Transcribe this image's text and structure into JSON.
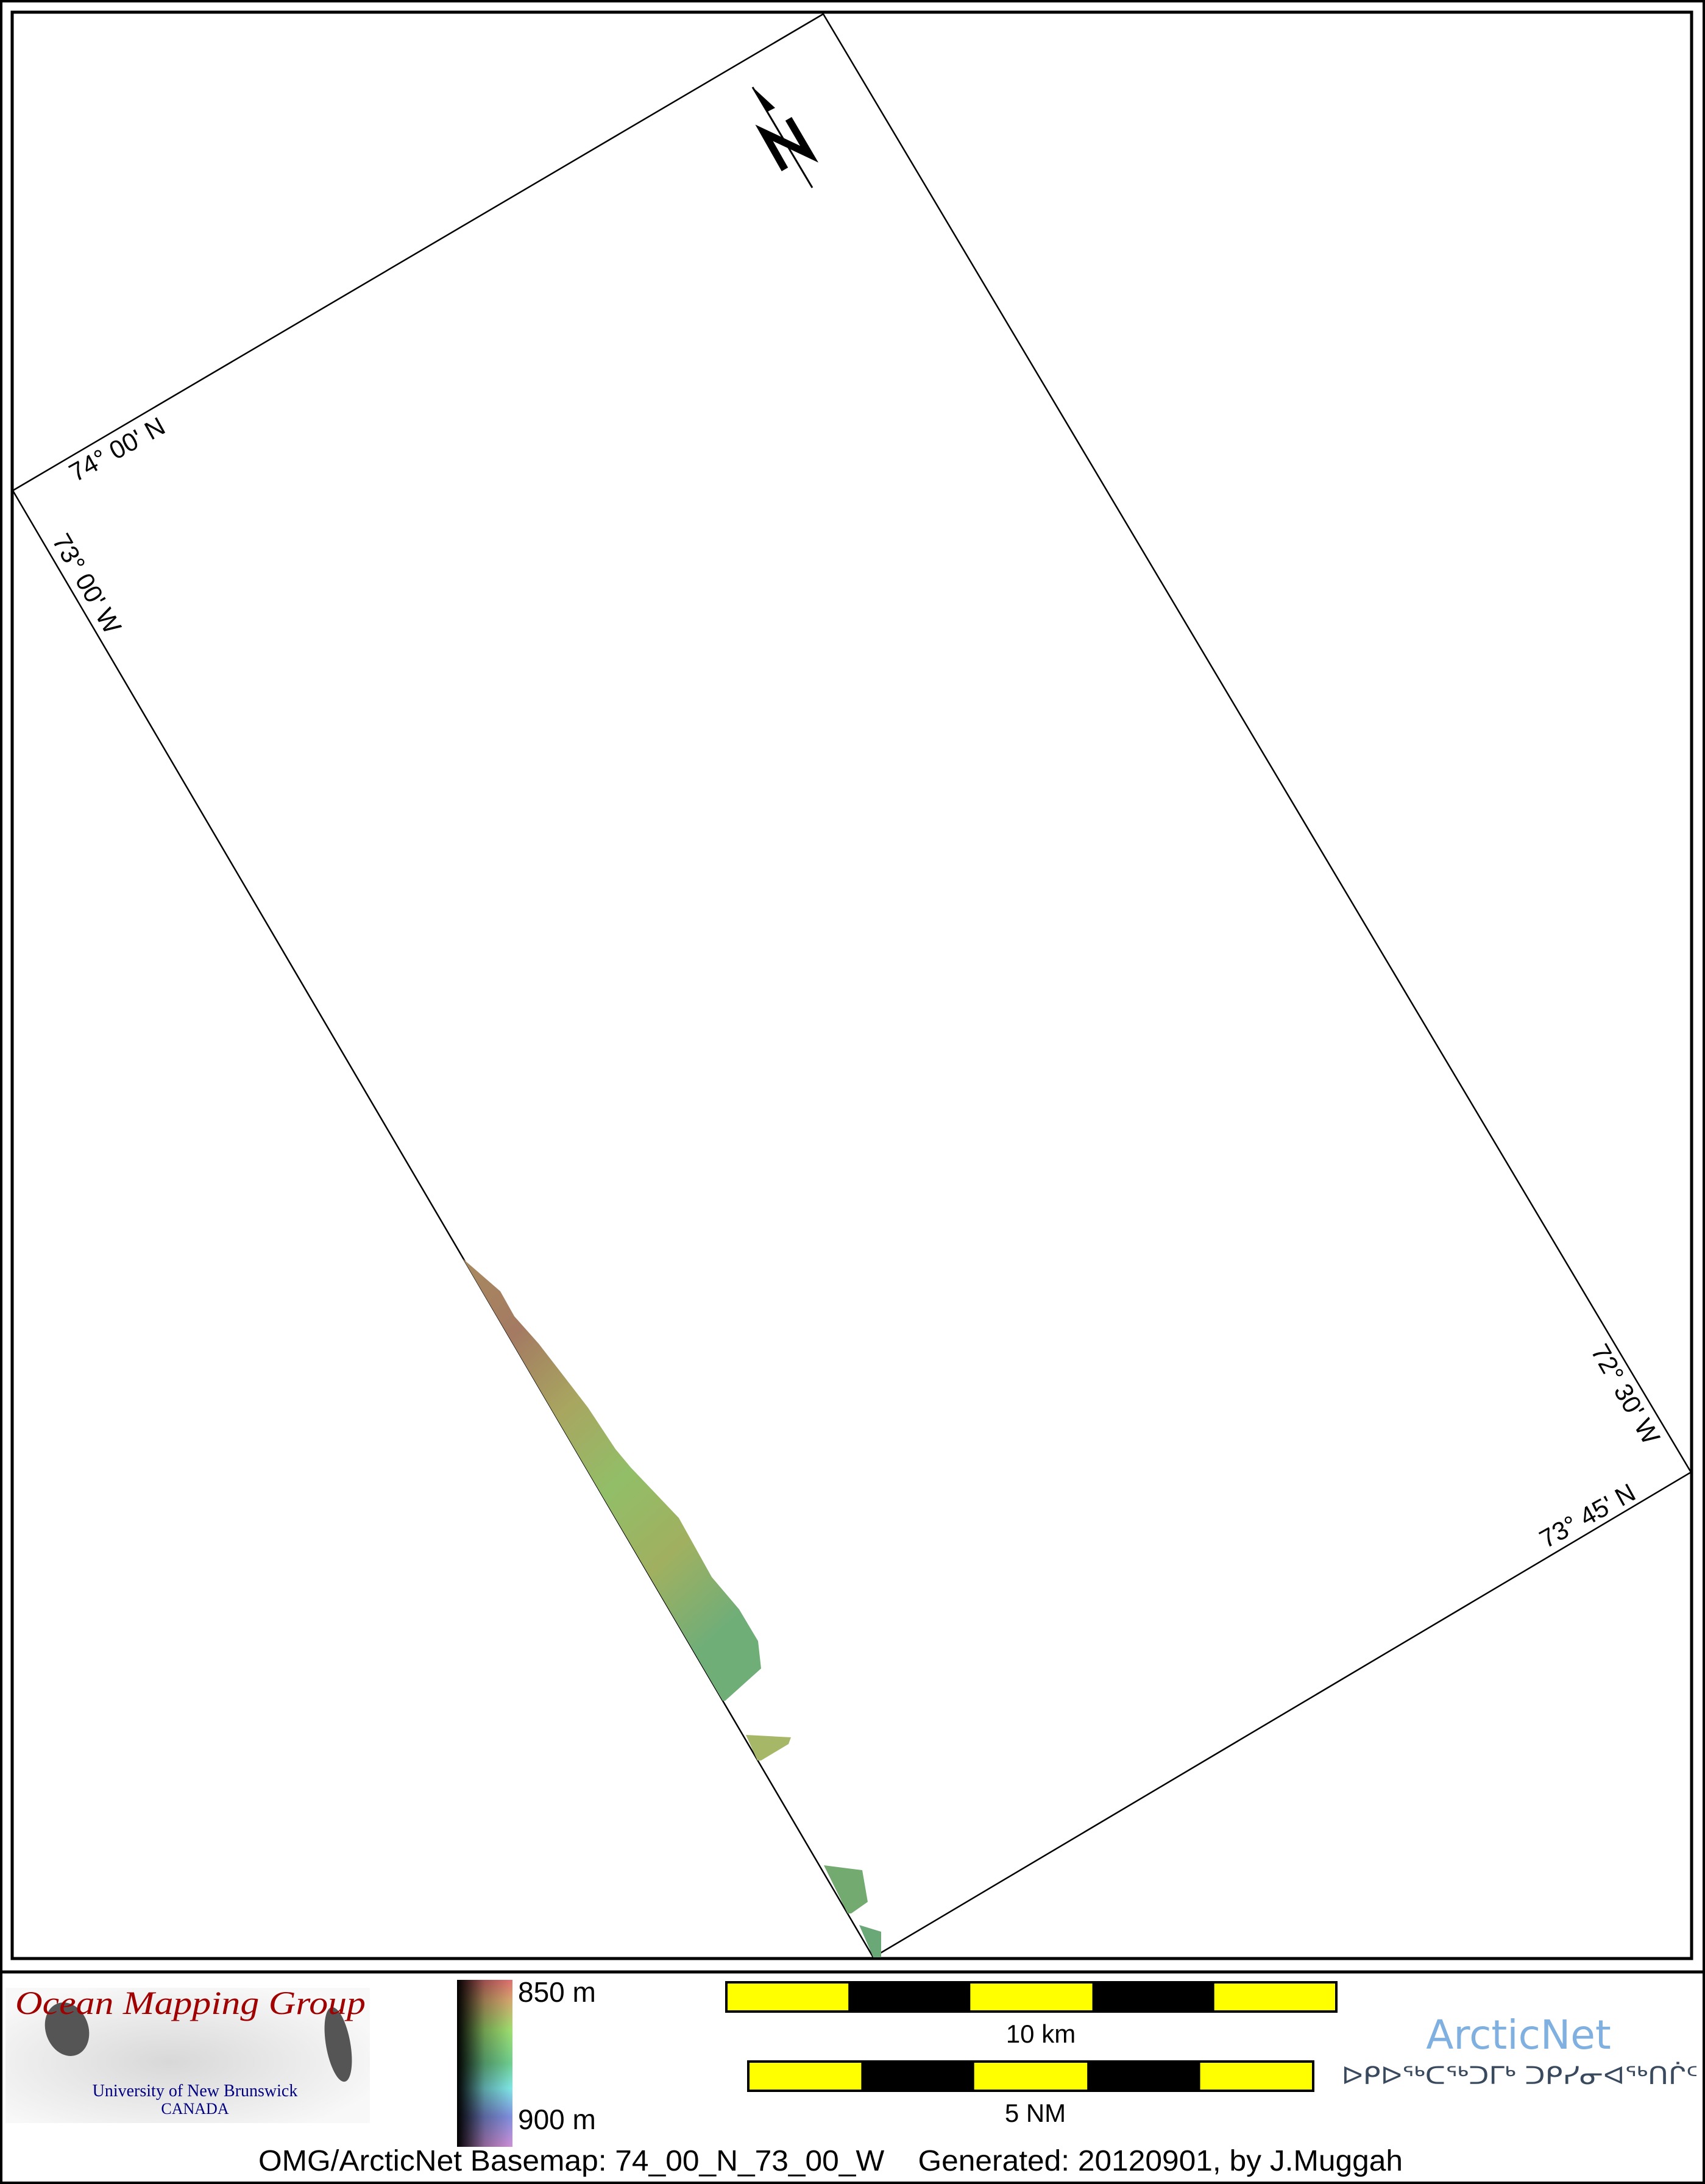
{
  "map": {
    "grid_labels": {
      "top_left_lat": "74° 00' N",
      "top_left_lon": "73° 00' W",
      "bottom_right_lon": "72° 30' W",
      "bottom_right_lat": "73° 45' N"
    },
    "north_arrow": {
      "letter": "N",
      "icon": "north-arrow-icon"
    },
    "bathymetry_colors": [
      "#a0785a",
      "#9aa860",
      "#8fbf6a",
      "#6fae78"
    ]
  },
  "legend": {
    "logo": {
      "title": "Ocean Mapping Group",
      "line1": "University of New Brunswick",
      "line2": "CANADA",
      "title_color": "#a00000",
      "text_color": "#000080"
    },
    "depth_scale": {
      "top": "850 m",
      "bottom": "900 m"
    },
    "scale_bars": [
      {
        "label": "10 km",
        "segments": 5
      },
      {
        "label": "5 NM",
        "segments": 5
      }
    ],
    "scale_colors": {
      "light": "#ffff00",
      "dark": "#000000"
    },
    "arcticnet": {
      "name": "ArcticNet",
      "syllabics": "ᐅᑭᐅᖅᑕᖅᑐᒥᒃ ᑐᑭᓯᓂᐊᖅᑎᒌᑦ",
      "name_color": "#7fb0e0",
      "syllabics_color": "#3a4a5e"
    },
    "footer": "OMG/ArcticNet Basemap: 74_00_N_73_00_W    Generated: 20120901, by J.Muggah"
  }
}
